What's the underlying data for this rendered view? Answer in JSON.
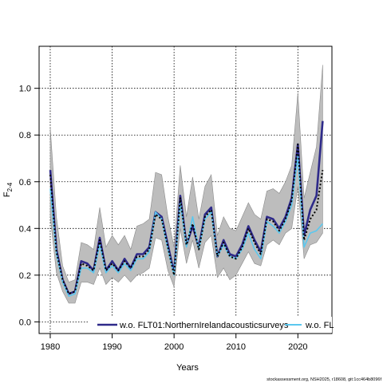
{
  "chart_data": {
    "type": "line",
    "xlabel": "Years",
    "ylabel": "F",
    "ylabel_sub": "2-4",
    "xlim": [
      1978.2,
      2025.5
    ],
    "ylim": [
      -0.05,
      1.18
    ],
    "xticks": [
      1980,
      1990,
      2000,
      2010,
      2020
    ],
    "yticks": [
      0.0,
      0.2,
      0.4,
      0.6,
      0.8,
      1.0
    ],
    "ytick_labels": [
      "0.0",
      "0.2",
      "0.4",
      "0.6",
      "0.8",
      "1.0"
    ],
    "grid": true,
    "legend_placement": "bottom",
    "footer": "stockassessment.org, NSH2025, r18608, git:1cc464b8096f",
    "x": [
      1980,
      1981,
      1982,
      1983,
      1984,
      1985,
      1986,
      1987,
      1988,
      1989,
      1990,
      1991,
      1992,
      1993,
      1994,
      1995,
      1996,
      1997,
      1998,
      1999,
      2000,
      2001,
      2002,
      2003,
      2004,
      2005,
      2006,
      2007,
      2008,
      2009,
      2010,
      2011,
      2012,
      2013,
      2014,
      2015,
      2016,
      2017,
      2018,
      2019,
      2020,
      2021,
      2022,
      2023,
      2024
    ],
    "band_upper": [
      0.83,
      0.45,
      0.24,
      0.17,
      0.18,
      0.34,
      0.33,
      0.31,
      0.49,
      0.32,
      0.37,
      0.33,
      0.37,
      0.31,
      0.41,
      0.42,
      0.44,
      0.64,
      0.63,
      0.45,
      0.32,
      0.67,
      0.45,
      0.62,
      0.44,
      0.58,
      0.63,
      0.37,
      0.45,
      0.4,
      0.39,
      0.45,
      0.51,
      0.46,
      0.44,
      0.56,
      0.57,
      0.55,
      0.6,
      0.67,
      0.98,
      0.53,
      0.64,
      0.75,
      1.1
    ],
    "band_lower": [
      0.45,
      0.21,
      0.13,
      0.08,
      0.08,
      0.17,
      0.17,
      0.16,
      0.23,
      0.16,
      0.19,
      0.17,
      0.2,
      0.17,
      0.2,
      0.21,
      0.23,
      0.36,
      0.35,
      0.22,
      0.15,
      0.4,
      0.25,
      0.35,
      0.23,
      0.34,
      0.37,
      0.19,
      0.23,
      0.18,
      0.2,
      0.25,
      0.3,
      0.25,
      0.24,
      0.33,
      0.35,
      0.33,
      0.38,
      0.4,
      0.58,
      0.27,
      0.33,
      0.34,
      0.38
    ],
    "series": [
      {
        "name": "w.o. FLT01:NorthernIrelandacousticsurveys",
        "color": "#2e2a8a",
        "style": "solid",
        "values": [
          0.65,
          0.31,
          0.18,
          0.12,
          0.13,
          0.26,
          0.25,
          0.22,
          0.36,
          0.22,
          0.26,
          0.22,
          0.27,
          0.23,
          0.29,
          0.29,
          0.32,
          0.47,
          0.45,
          0.33,
          0.21,
          0.54,
          0.33,
          0.41,
          0.32,
          0.46,
          0.49,
          0.28,
          0.35,
          0.29,
          0.28,
          0.33,
          0.41,
          0.35,
          0.3,
          0.45,
          0.44,
          0.4,
          0.45,
          0.53,
          0.76,
          0.37,
          0.48,
          0.54,
          0.86
        ]
      },
      {
        "name": "w.o. FL",
        "color": "#5bc8ef",
        "style": "solid",
        "values": [
          0.57,
          0.29,
          0.17,
          0.11,
          0.12,
          0.23,
          0.23,
          0.21,
          0.33,
          0.21,
          0.24,
          0.21,
          0.25,
          0.22,
          0.27,
          0.27,
          0.3,
          0.47,
          0.44,
          0.31,
          0.2,
          0.51,
          0.32,
          0.45,
          0.31,
          0.44,
          0.47,
          0.28,
          0.33,
          0.28,
          0.27,
          0.31,
          0.38,
          0.31,
          0.27,
          0.43,
          0.41,
          0.38,
          0.43,
          0.5,
          0.71,
          0.32,
          0.38,
          0.39,
          0.42
        ]
      },
      {
        "name": "",
        "color": "#000000",
        "style": "dotted",
        "values": [
          0.63,
          0.3,
          0.18,
          0.12,
          0.13,
          0.25,
          0.24,
          0.22,
          0.35,
          0.22,
          0.25,
          0.22,
          0.26,
          0.23,
          0.28,
          0.28,
          0.31,
          0.46,
          0.44,
          0.32,
          0.2,
          0.53,
          0.33,
          0.42,
          0.31,
          0.45,
          0.48,
          0.28,
          0.34,
          0.28,
          0.27,
          0.32,
          0.4,
          0.34,
          0.29,
          0.44,
          0.43,
          0.39,
          0.44,
          0.52,
          0.76,
          0.35,
          0.44,
          0.48,
          0.65
        ]
      }
    ]
  }
}
